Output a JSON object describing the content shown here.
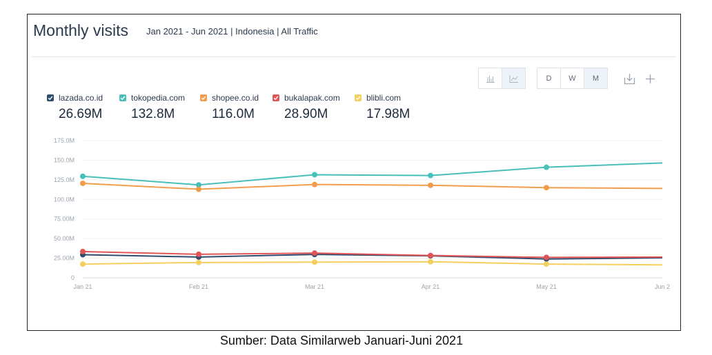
{
  "header": {
    "title": "Monthly visits",
    "subtitle": "Jan 2021 - Jun 2021 | Indonesia | All Traffic"
  },
  "toolbar": {
    "chart_type_icons": [
      "bar-chart-icon",
      "line-chart-icon"
    ],
    "granularity": [
      "D",
      "W",
      "M"
    ],
    "active_granularity": "M",
    "action_icons": [
      "download-icon",
      "plus-icon"
    ]
  },
  "legend": [
    {
      "name": "lazada.co.id",
      "total": "26.69M",
      "color": "#2f4b6e"
    },
    {
      "name": "tokopedia.com",
      "total": "132.8M",
      "color": "#48bfba"
    },
    {
      "name": "shopee.co.id",
      "total": "116.0M",
      "color": "#f29c4c"
    },
    {
      "name": "bukalapak.com",
      "total": "28.90M",
      "color": "#e05555"
    },
    {
      "name": "blibli.com",
      "total": "17.98M",
      "color": "#f5cf5f"
    }
  ],
  "caption": "Sumber: Data Similarweb Januari-Juni 2021",
  "chart_data": {
    "type": "line",
    "categories": [
      "Jan 21",
      "Feb 21",
      "Mar 21",
      "Apr 21",
      "May 21",
      "Jun 2"
    ],
    "ytick_labels": [
      "0",
      "25.00M",
      "50.00M",
      "75.00M",
      "100.0M",
      "125.0M",
      "150.0M",
      "175.0M"
    ],
    "yticks": [
      0,
      25,
      50,
      75,
      100,
      125,
      150,
      175
    ],
    "ylim": [
      0,
      175
    ],
    "units": "millions of visits",
    "grid": true,
    "legend_position": "top-left",
    "series": [
      {
        "name": "lazada.co.id",
        "color": "#2f4b6e",
        "values": [
          29.5,
          26.5,
          29.8,
          28.0,
          24.0,
          25.5
        ]
      },
      {
        "name": "tokopedia.com",
        "color": "#48bfba",
        "values": [
          129.5,
          118.5,
          131.5,
          130.5,
          141.0,
          146.5
        ]
      },
      {
        "name": "shopee.co.id",
        "color": "#f29c4c",
        "values": [
          120.5,
          113.0,
          119.0,
          118.0,
          115.0,
          114.0
        ]
      },
      {
        "name": "bukalapak.com",
        "color": "#e05555",
        "values": [
          33.5,
          30.0,
          31.5,
          28.5,
          26.0,
          26.5
        ]
      },
      {
        "name": "blibli.com",
        "color": "#f5cf5f",
        "values": [
          17.5,
          19.5,
          20.0,
          20.5,
          17.5,
          16.5
        ]
      }
    ]
  }
}
